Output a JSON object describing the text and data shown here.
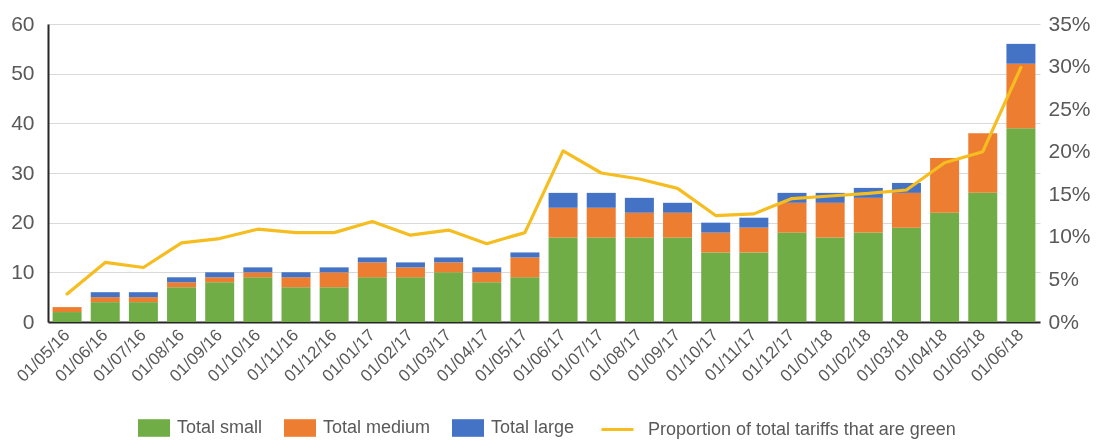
{
  "chart_data": {
    "type": "bar",
    "stacked": true,
    "categories": [
      "01/05/16",
      "01/06/16",
      "01/07/16",
      "01/08/16",
      "01/09/16",
      "01/10/16",
      "01/11/16",
      "01/12/16",
      "01/01/17",
      "01/02/17",
      "01/03/17",
      "01/04/17",
      "01/05/17",
      "01/06/17",
      "01/07/17",
      "01/08/17",
      "01/09/17",
      "01/10/17",
      "01/11/17",
      "01/12/17",
      "01/01/18",
      "01/02/18",
      "01/03/18",
      "01/04/18",
      "01/05/18",
      "01/06/18"
    ],
    "series": [
      {
        "name": "Total small",
        "color": "#70ad47",
        "values": [
          2,
          4,
          4,
          7,
          8,
          9,
          7,
          7,
          9,
          9,
          10,
          8,
          9,
          17,
          17,
          17,
          17,
          14,
          14,
          18,
          17,
          18,
          19,
          22,
          26,
          39
        ]
      },
      {
        "name": "Total medium",
        "color": "#ed7d31",
        "values": [
          1,
          1,
          1,
          1,
          1,
          1,
          2,
          3,
          3,
          2,
          2,
          2,
          4,
          6,
          6,
          5,
          5,
          4,
          5,
          6,
          7,
          7,
          7,
          11,
          12,
          13
        ]
      },
      {
        "name": "Total large",
        "color": "#4472c4",
        "values": [
          0,
          1,
          1,
          1,
          1,
          1,
          1,
          1,
          1,
          1,
          1,
          1,
          1,
          3,
          3,
          3,
          2,
          2,
          2,
          2,
          2,
          2,
          2,
          0,
          0,
          4
        ]
      },
      {
        "name": "Proportion of total tariffs that are green",
        "type": "line",
        "axis": "y2",
        "color": "#f5bd1f",
        "values": [
          3.3,
          7,
          6.4,
          9.3,
          9.8,
          10.9,
          10.5,
          10.5,
          11.8,
          10.2,
          10.8,
          9.2,
          10.5,
          20.1,
          17.5,
          16.8,
          15.7,
          12.5,
          12.7,
          14.5,
          14.8,
          15.1,
          15.5,
          18.7,
          20,
          29.9
        ]
      }
    ],
    "ylim": [
      0,
      60
    ],
    "yticks": [
      0,
      10,
      20,
      30,
      40,
      50,
      60
    ],
    "y2lim": [
      0,
      35
    ],
    "y2ticks": [
      {
        "value": 0,
        "label": "0%"
      },
      {
        "value": 5,
        "label": "5%"
      },
      {
        "value": 10,
        "label": "10%"
      },
      {
        "value": 15,
        "label": "15%"
      },
      {
        "value": 20,
        "label": "20%"
      },
      {
        "value": 25,
        "label": "25%"
      },
      {
        "value": 30,
        "label": "30%"
      },
      {
        "value": 35,
        "label": "35%"
      }
    ],
    "grid": "y",
    "legend": "bottom"
  }
}
